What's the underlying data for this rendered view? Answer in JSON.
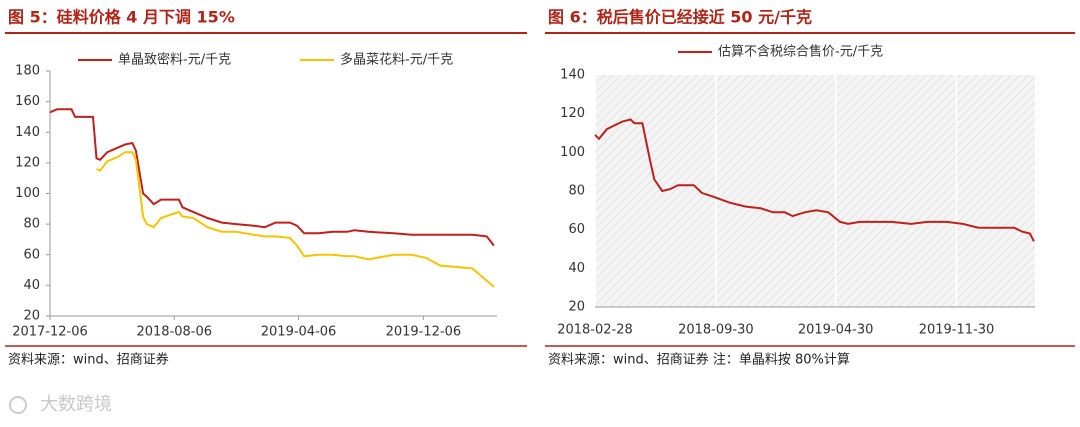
{
  "watermark": "大数跨境",
  "chart_data": [
    {
      "type": "line",
      "title": "图 5：硅料价格 4 月下调 15%",
      "source": "资料来源：wind、招商证券",
      "x": [
        "2017-12-06",
        "2017-12-20",
        "2018-01-17",
        "2018-01-24",
        "2018-02-28",
        "2018-03-07",
        "2018-03-14",
        "2018-03-28",
        "2018-04-18",
        "2018-05-02",
        "2018-05-16",
        "2018-05-23",
        "2018-06-06",
        "2018-06-13",
        "2018-06-27",
        "2018-07-11",
        "2018-08-15",
        "2018-08-22",
        "2018-09-12",
        "2018-10-10",
        "2018-11-07",
        "2018-12-05",
        "2019-01-09",
        "2019-01-30",
        "2019-02-20",
        "2019-03-20",
        "2019-04-03",
        "2019-04-17",
        "2019-05-15",
        "2019-06-12",
        "2019-07-10",
        "2019-07-24",
        "2019-08-21",
        "2019-10-09",
        "2019-11-13",
        "2019-12-11",
        "2020-01-08",
        "2020-03-11",
        "2020-04-08",
        "2020-04-22"
      ],
      "series": [
        {
          "name": "单晶致密料-元/千克",
          "color": "#c0201c",
          "values": [
            153,
            155,
            155,
            150,
            150,
            123,
            122,
            127,
            130,
            132,
            133,
            128,
            100,
            98,
            93,
            96,
            96,
            91,
            88,
            84,
            81,
            80,
            79,
            78,
            81,
            81,
            79,
            74,
            74,
            75,
            75,
            76,
            75,
            74,
            73,
            73,
            73,
            73,
            72,
            66
          ]
        },
        {
          "name": "多晶菜花料-元/千克",
          "color": "#f5c400",
          "values": [
            null,
            null,
            null,
            null,
            null,
            116,
            115,
            121,
            124,
            127,
            127,
            122,
            85,
            80,
            78,
            84,
            88,
            85,
            84,
            78,
            75,
            75,
            73,
            72,
            72,
            71,
            66,
            59,
            60,
            60,
            59,
            59,
            57,
            60,
            60,
            58,
            53,
            51,
            43,
            39
          ]
        }
      ],
      "xlim": [
        "2017-12-06",
        "2020-04-28"
      ],
      "xticks": [
        "2017-12-06",
        "2018-08-06",
        "2019-04-06",
        "2019-12-06"
      ],
      "ylim": [
        20,
        180
      ],
      "yticks": [
        20,
        40,
        60,
        80,
        100,
        120,
        140,
        160,
        180
      ],
      "xgrid": false,
      "plot_hatch": false,
      "legend": "top"
    },
    {
      "type": "line",
      "title": "图 6：税后售价已经接近 50 元/千克",
      "source": "资料来源：wind、招商证券 注：单晶料按 80%计算",
      "x": [
        "2018-02-28",
        "2018-03-07",
        "2018-03-21",
        "2018-04-18",
        "2018-05-02",
        "2018-05-09",
        "2018-05-23",
        "2018-06-06",
        "2018-06-13",
        "2018-06-27",
        "2018-07-11",
        "2018-07-25",
        "2018-08-22",
        "2018-09-05",
        "2018-09-26",
        "2018-10-24",
        "2018-11-21",
        "2018-12-19",
        "2019-01-09",
        "2019-01-30",
        "2019-02-13",
        "2019-03-06",
        "2019-03-27",
        "2019-04-17",
        "2019-05-08",
        "2019-05-22",
        "2019-06-12",
        "2019-07-10",
        "2019-08-07",
        "2019-09-11",
        "2019-10-09",
        "2019-11-13",
        "2019-12-11",
        "2020-01-08",
        "2020-02-05",
        "2020-03-11",
        "2020-03-25",
        "2020-04-08",
        "2020-04-15"
      ],
      "series": [
        {
          "name": "估算不含税综合售价-元/千克",
          "color": "#c0201c",
          "values": [
            109,
            107,
            112,
            116,
            117,
            115,
            115,
            95,
            86,
            80,
            81,
            83,
            83,
            79,
            77,
            74,
            72,
            71,
            69,
            69,
            67,
            69,
            70,
            69,
            64,
            63,
            64,
            64,
            64,
            63,
            64,
            64,
            63,
            61,
            61,
            61,
            59,
            58,
            54
          ]
        }
      ],
      "xlim": [
        "2018-02-28",
        "2020-04-17"
      ],
      "xticks": [
        "2018-02-28",
        "2018-09-30",
        "2019-04-30",
        "2019-11-30"
      ],
      "ylim": [
        20,
        140
      ],
      "yticks": [
        20,
        40,
        60,
        80,
        100,
        120,
        140
      ],
      "xgrid": true,
      "plot_hatch": true,
      "legend": "top"
    }
  ]
}
